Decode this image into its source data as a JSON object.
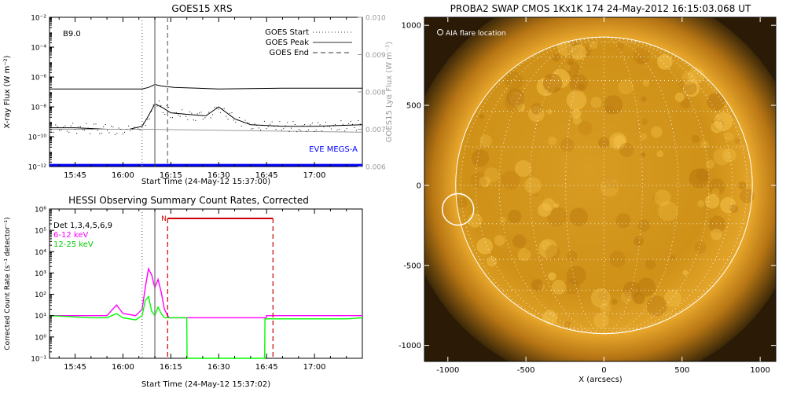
{
  "chart_data": [
    {
      "type": "line",
      "title": "GOES15 XRS",
      "class_label": "B9.0",
      "xlabel": "Start Time (24-May-12 15:37:00)",
      "ylabel": "X-ray Flux (W m⁻²)",
      "ylabel_right": "GOES15 Lyα Flux (W m⁻²)",
      "x_ticks": [
        "15:45",
        "16:00",
        "16:15",
        "16:30",
        "16:45",
        "17:00"
      ],
      "xlim_minutes": [
        37,
        135
      ],
      "y_log_exponents": [
        -12,
        -2
      ],
      "y_ticks": [
        "10⁻¹²",
        "10⁻¹⁰",
        "10⁻⁸",
        "10⁻⁶",
        "10⁻⁴",
        "10⁻²"
      ],
      "y2_range": [
        0.006,
        0.01
      ],
      "y2_ticks": [
        "0.006",
        "0.007",
        "0.008",
        "0.009",
        "0.010"
      ],
      "legend": [
        "GOES Start",
        "GOES Peak",
        "GOES End"
      ],
      "event_lines_minutes": {
        "start": 66,
        "peak": 70,
        "end": 74
      },
      "eve_label": "EVE MEGS-A",
      "series": [
        {
          "name": "",
          "color": "#000000",
          "x_minutes": [
            37,
            50,
            60,
            66,
            68,
            70,
            72,
            76,
            90,
            110,
            135
          ],
          "y_log": [
            -6.8,
            -6.8,
            -6.8,
            -6.8,
            -6.7,
            -6.5,
            -6.6,
            -6.7,
            -6.8,
            -6.75,
            -6.75
          ]
        },
        {
          "name": "",
          "color": "#000000",
          "x_minutes": [
            37,
            45,
            55,
            62,
            66,
            68,
            70,
            72,
            75,
            80,
            86,
            90,
            95,
            100,
            110,
            120,
            135
          ],
          "y_log": [
            -9.4,
            -9.4,
            -9.5,
            -9.5,
            -9.3,
            -8.6,
            -7.8,
            -8.0,
            -8.4,
            -8.5,
            -8.6,
            -8.0,
            -8.8,
            -9.2,
            -9.3,
            -9.3,
            -9.2
          ]
        },
        {
          "name": "",
          "color": "#999999",
          "x_minutes": [
            37,
            68,
            100,
            135
          ],
          "y_log": [
            -9.5,
            -9.5,
            -9.6,
            -9.7
          ]
        },
        {
          "name": "EVE MEGS-A",
          "color": "#0000ff",
          "x_minutes": [
            37,
            135
          ],
          "y_log": [
            -11.9,
            -11.9
          ]
        }
      ]
    },
    {
      "type": "line",
      "title": "HESSI Observing Summary Count Rates, Corrected",
      "xlabel": "Start Time (24-May-12 15:37:02)",
      "ylabel": "Corrected Count Rate (s⁻¹ detector⁻¹)",
      "x_ticks": [
        "15:45",
        "16:00",
        "16:15",
        "16:30",
        "16:45",
        "17:00"
      ],
      "xlim_minutes": [
        37,
        135
      ],
      "y_log_exponents": [
        -1,
        6
      ],
      "y_ticks": [
        "10⁻¹",
        "10⁰",
        "10¹",
        "10²",
        "10³",
        "10⁴",
        "10⁵",
        "10⁶"
      ],
      "legend": [
        "Det 1,3,4,5,6,9",
        "6-12 keV",
        "12-25 keV"
      ],
      "flag_label": "N",
      "flag_range_minutes": [
        74,
        107
      ],
      "series": [
        {
          "name": "6-12 keV",
          "color": "#ff00ff",
          "x_minutes": [
            37,
            50,
            55,
            58,
            60,
            64,
            66,
            67,
            68,
            69,
            70,
            71,
            72,
            73,
            74,
            74.5,
            77,
            104.9,
            105,
            110,
            120,
            130,
            135
          ],
          "y_log": [
            1.0,
            1.0,
            1.0,
            1.5,
            1.1,
            1.0,
            1.3,
            2.3,
            3.2,
            2.9,
            2.3,
            2.7,
            2.1,
            1.3,
            1.0,
            0.9,
            0.9,
            0.9,
            1.0,
            1.0,
            1.0,
            1.0,
            1.0
          ]
        },
        {
          "name": "12-25 keV",
          "color": "#00ff00",
          "x_minutes": [
            37,
            50,
            55,
            58,
            60,
            64,
            66,
            67,
            68,
            69,
            70,
            71,
            72,
            73,
            74,
            74.5,
            80,
            80.1,
            104.4,
            104.5,
            105,
            110,
            120,
            130,
            135
          ],
          "y_log": [
            1.0,
            0.9,
            0.9,
            1.1,
            0.9,
            0.8,
            1.0,
            1.7,
            1.9,
            1.2,
            1.0,
            1.4,
            1.1,
            0.9,
            0.9,
            0.9,
            0.9,
            -1.0,
            -1.0,
            0.85,
            0.85,
            0.85,
            0.85,
            0.85,
            0.9
          ]
        }
      ]
    },
    {
      "type": "heatmap",
      "title": "PROBA2 SWAP CMOS 1Kx1K 174 24-May-2012 16:15:03.068 UT",
      "annotation": "AIA flare location",
      "xlabel": "X (arcsecs)",
      "ylabel": "",
      "xlim": [
        -1150,
        1100
      ],
      "ylim": [
        -1100,
        1050
      ],
      "x_ticks": [
        "-1000",
        "-500",
        "0",
        "500",
        "1000"
      ],
      "y_ticks": [
        "-1000",
        "-500",
        "0",
        "500",
        "1000"
      ],
      "limb_radius_arcsec": 950,
      "flare_location_arcsec": [
        -935,
        -150
      ],
      "colors": {
        "disk": "#d79a1b",
        "background": "#2a1a06",
        "corona": "#f0b030"
      }
    }
  ]
}
